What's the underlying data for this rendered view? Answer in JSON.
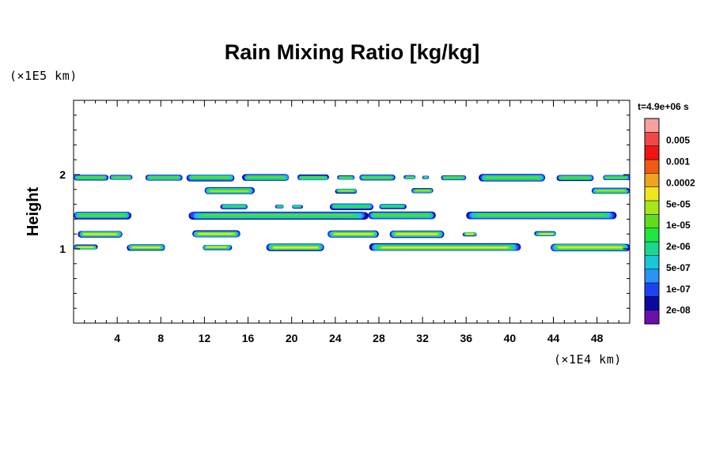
{
  "chart_data": {
    "type": "contour",
    "title": "Rain Mixing Ratio [kg/kg]",
    "xlabel": "",
    "ylabel": "Height",
    "x_unit": "(×1E4 km)",
    "y_unit": "(×1E5 km)",
    "time_label": "t=4.9e+06 s",
    "xlim": [
      0,
      51
    ],
    "ylim": [
      0,
      3
    ],
    "x_ticks": [
      4,
      8,
      12,
      16,
      20,
      24,
      28,
      32,
      36,
      40,
      44,
      48
    ],
    "y_ticks": [
      1,
      2
    ],
    "legend": {
      "levels": [
        "2e-08",
        "1e-07",
        "5e-07",
        "2e-06",
        "1e-05",
        "5e-05",
        "0.0002",
        "0.001",
        "0.005"
      ],
      "colors": [
        "#6a0fa8",
        "#0a0aa0",
        "#1b44f0",
        "#2a93f5",
        "#18c8d8",
        "#18d890",
        "#21e640",
        "#60dc1a",
        "#a8e61a",
        "#f0e61e",
        "#f0a31e",
        "#f05a14",
        "#f01414",
        "#f04848",
        "#f8a0a0"
      ]
    },
    "bands": [
      {
        "height": 1.96,
        "segments": [
          [
            0.0,
            3.2
          ],
          [
            3.3,
            5.4
          ],
          [
            6.6,
            10.0
          ],
          [
            10.4,
            14.8
          ],
          [
            15.5,
            19.8
          ],
          [
            20.5,
            23.4
          ],
          [
            24.2,
            25.8
          ],
          [
            26.2,
            29.5
          ],
          [
            30.3,
            31.4
          ],
          [
            32.0,
            32.6
          ],
          [
            33.7,
            36.0
          ],
          [
            37.2,
            43.3
          ],
          [
            44.3,
            47.7
          ],
          [
            48.5,
            51.0
          ]
        ],
        "max_level": 6
      },
      {
        "height": 1.78,
        "segments": [
          [
            12.0,
            16.6
          ],
          [
            24.0,
            26.0
          ],
          [
            31.0,
            33.0
          ],
          [
            47.5,
            51.0
          ]
        ],
        "max_level": 7
      },
      {
        "height": 1.57,
        "segments": [
          [
            13.5,
            16.0
          ],
          [
            18.5,
            19.3
          ],
          [
            20.0,
            21.0
          ],
          [
            23.5,
            27.5
          ],
          [
            28.0,
            30.5
          ]
        ],
        "max_level": 5
      },
      {
        "height": 1.45,
        "segments": [
          [
            0.0,
            5.3
          ],
          [
            10.5,
            27.0
          ],
          [
            27.0,
            33.2
          ],
          [
            36.0,
            49.8
          ]
        ],
        "max_level": 6
      },
      {
        "height": 1.2,
        "segments": [
          [
            0.4,
            4.5
          ],
          [
            10.9,
            15.3
          ],
          [
            23.3,
            28.0
          ],
          [
            29.0,
            34.0
          ],
          [
            35.7,
            37.0
          ],
          [
            42.3,
            44.3
          ]
        ],
        "max_level": 8
      },
      {
        "height": 1.02,
        "segments": [
          [
            0.0,
            2.2
          ],
          [
            4.9,
            8.4
          ],
          [
            11.8,
            14.5
          ],
          [
            17.7,
            23.0
          ],
          [
            27.1,
            41.0
          ],
          [
            43.7,
            51.0
          ]
        ],
        "max_level": 8
      }
    ]
  }
}
